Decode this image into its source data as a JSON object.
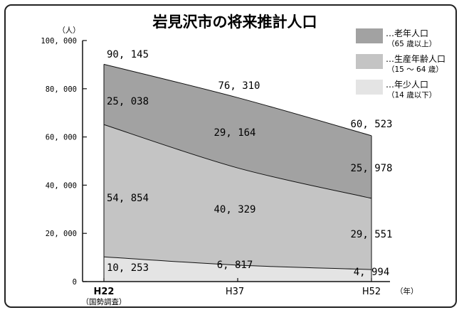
{
  "chart_data": {
    "type": "area",
    "stacked": true,
    "title": "岩見沢市の将来推計人口",
    "ylabel": "（人）",
    "ylim": [
      0,
      100000
    ],
    "yticks": [
      0,
      20000,
      40000,
      60000,
      80000,
      100000
    ],
    "ytick_labels": [
      "0",
      "20, 000",
      "40, 000",
      "60, 000",
      "80, 000",
      "100, 000"
    ],
    "categories": [
      "H22",
      "H37",
      "H52"
    ],
    "category_notes": [
      "（国勢調査）",
      "",
      ""
    ],
    "x_unit": "（年）",
    "x": [
      0,
      15,
      30
    ],
    "totals": [
      90145,
      76310,
      60523
    ],
    "total_labels": [
      "90, 145",
      "76, 310",
      "60, 523"
    ],
    "series": [
      {
        "name": "年少人口",
        "legend_label": "…年少人口",
        "legend_sub": "（14 歳以下）",
        "values": [
          10253,
          6817,
          4994
        ],
        "value_labels": [
          "10, 253",
          "6, 817",
          "4, 994"
        ],
        "color": "#e4e4e4"
      },
      {
        "name": "生産年齢人口",
        "legend_label": "…生産年齢人口",
        "legend_sub": "（15 ～ 64 歳）",
        "values": [
          54854,
          40329,
          29551
        ],
        "value_labels": [
          "54, 854",
          "40, 329",
          "29, 551"
        ],
        "color": "#c4c4c4"
      },
      {
        "name": "老年人口",
        "legend_label": "…老年人口",
        "legend_sub": "（65 歳以上）",
        "values": [
          25038,
          29164,
          25978
        ],
        "value_labels": [
          "25, 038",
          "29, 164",
          "25, 978"
        ],
        "color": "#a2a2a2"
      }
    ],
    "legend_position": "top-right",
    "grid": false
  }
}
